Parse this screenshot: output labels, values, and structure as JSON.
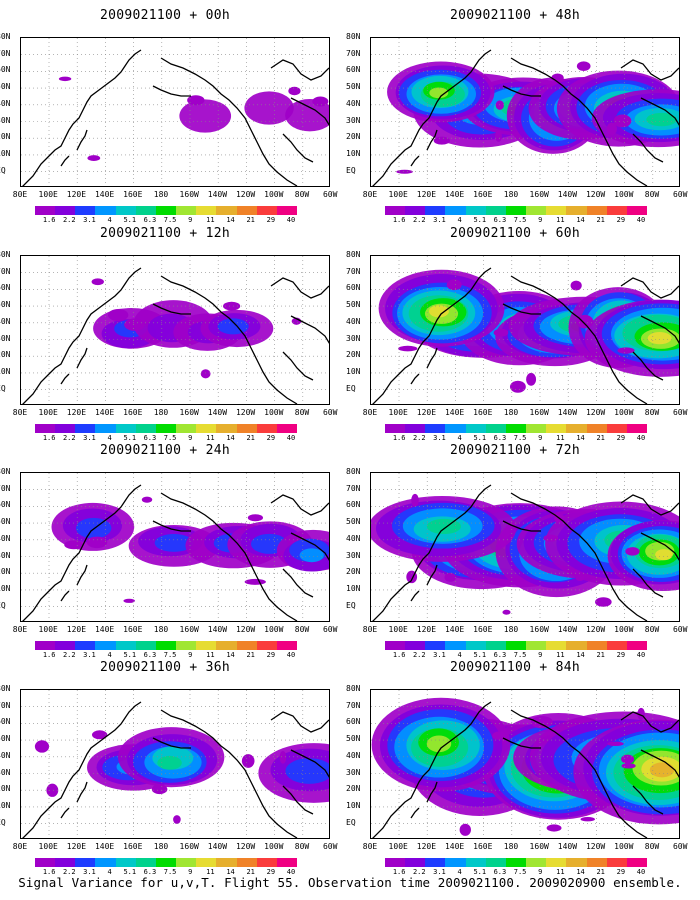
{
  "panels": [
    {
      "title": "2009021100 + 00h",
      "lead": "00h",
      "intensity": 0.1
    },
    {
      "title": "2009021100 + 48h",
      "lead": "48h",
      "intensity": 0.6
    },
    {
      "title": "2009021100 + 12h",
      "lead": "12h",
      "intensity": 0.25
    },
    {
      "title": "2009021100 + 60h",
      "lead": "60h",
      "intensity": 0.7
    },
    {
      "title": "2009021100 + 24h",
      "lead": "24h",
      "intensity": 0.35
    },
    {
      "title": "2009021100 + 72h",
      "lead": "72h",
      "intensity": 0.8
    },
    {
      "title": "2009021100 + 36h",
      "lead": "36h",
      "intensity": 0.45
    },
    {
      "title": "2009021100 + 84h",
      "lead": "84h",
      "intensity": 0.9
    }
  ],
  "lat_labels": [
    "80N",
    "70N",
    "60N",
    "50N",
    "40N",
    "30N",
    "20N",
    "10N",
    "EQ"
  ],
  "lon_labels": [
    "80E",
    "100E",
    "120E",
    "140E",
    "160E",
    "180",
    "160W",
    "140W",
    "120W",
    "100W",
    "80W",
    "60W"
  ],
  "colorbar": {
    "labels": [
      "1.6",
      "2.2",
      "3.1",
      "4",
      "5.1",
      "6.3",
      "7.5",
      "9",
      "11",
      "14",
      "21",
      "29",
      "40"
    ],
    "colors": [
      "#a000c8",
      "#8200dc",
      "#1e3cff",
      "#0096ff",
      "#00c8c8",
      "#00d28c",
      "#00dc00",
      "#a0e632",
      "#e6dc32",
      "#e6af2d",
      "#f08228",
      "#fa3c3c",
      "#f00082"
    ]
  },
  "caption": "Signal Variance for u,v,T. Flight 55. Observation time 2009021100. 2009020900 ensemble."
}
